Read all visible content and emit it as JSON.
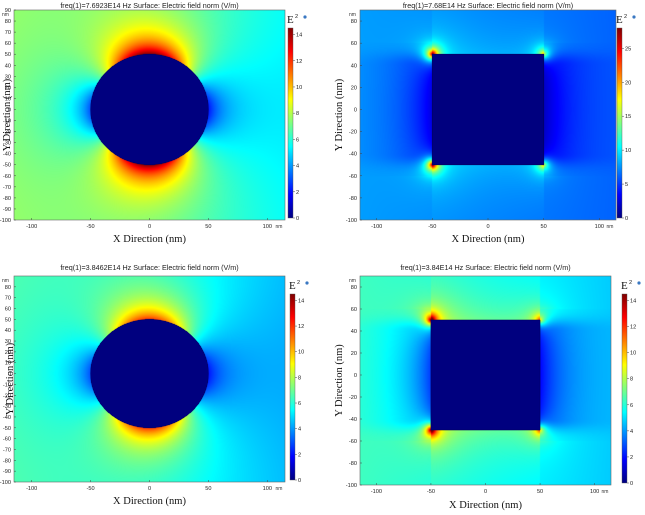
{
  "colors": {
    "background_field": "#00aaff",
    "particle": "#00007f",
    "colormap": [
      "#00007f",
      "#0000ff",
      "#007fff",
      "#00ffff",
      "#7fff7f",
      "#ffff00",
      "#ff7f00",
      "#ff0000",
      "#7f0000"
    ]
  },
  "chart_data": [
    {
      "type": "heatmap",
      "title": "freq(1)=7.6923E14 Hz   Surface: Electric field norm (V/m)",
      "xlabel": "X Direction (nm)",
      "ylabel": "Y Direction (nm)",
      "x_unit": "nm",
      "y_unit": "nm",
      "xlim": [
        -115,
        115
      ],
      "ylim": [
        -100,
        90
      ],
      "x_ticks": [
        -100,
        -50,
        0,
        50,
        100
      ],
      "y_ticks": [
        90,
        80,
        70,
        60,
        50,
        40,
        30,
        20,
        10,
        0,
        -10,
        -20,
        -30,
        -40,
        -50,
        -60,
        -70,
        -80,
        -90,
        -100
      ],
      "shape": "circle",
      "shape_radius": 50,
      "colorbar_label": "E",
      "colorbar_sup": "2",
      "colorbar_range": [
        0,
        14.5
      ],
      "colorbar_ticks": [
        0,
        2,
        4,
        6,
        8,
        10,
        12,
        14
      ],
      "field_model": {
        "background": 6.5,
        "hotspot_peak": 14.5,
        "shadow_min": 2.5
      }
    },
    {
      "type": "heatmap",
      "title": "freq(1)=7.68E14 Hz   Surface: Electric field norm (V/m)",
      "xlabel": "X Direction (nm)",
      "ylabel": "Y Direction (nm)",
      "x_unit": "nm",
      "y_unit": "nm",
      "xlim": [
        -115,
        115
      ],
      "ylim": [
        -100,
        90
      ],
      "x_ticks": [
        -100,
        -50,
        0,
        50,
        100
      ],
      "y_ticks": [
        80,
        60,
        40,
        20,
        0,
        -20,
        -40,
        -60,
        -80,
        -100
      ],
      "shape": "square",
      "shape_half_width": 50,
      "colorbar_label": "E",
      "colorbar_sup": "2",
      "colorbar_range": [
        0,
        28
      ],
      "colorbar_ticks": [
        0,
        5,
        10,
        15,
        20,
        25
      ],
      "field_model": {
        "background": 7,
        "hotspot_peak": 28,
        "shadow_min": 2
      }
    },
    {
      "type": "heatmap",
      "title": "freq(1)=3.8462E14 Hz   Surface: Electric field norm (V/m)",
      "xlabel": "X Direction (nm)",
      "ylabel": "Y Direction (nm)",
      "x_unit": "nm",
      "y_unit": "nm",
      "xlim": [
        -115,
        115
      ],
      "ylim": [
        -100,
        90
      ],
      "x_ticks": [
        -100,
        -50,
        0,
        50,
        100
      ],
      "y_ticks": [
        80,
        70,
        60,
        50,
        40,
        30,
        20,
        10,
        0,
        -10,
        -20,
        -30,
        -40,
        -50,
        -60,
        -70,
        -80,
        -90,
        -100
      ],
      "shape": "circle",
      "shape_radius": 50,
      "colorbar_label": "E",
      "colorbar_sup": "2",
      "colorbar_range": [
        0,
        14.5
      ],
      "colorbar_ticks": [
        0,
        2,
        4,
        6,
        8,
        10,
        12,
        14
      ],
      "field_model": {
        "background": 5.5,
        "hotspot_peak": 12,
        "shadow_min": 2.5
      }
    },
    {
      "type": "heatmap",
      "title": "freq(1)=3.84E14 Hz   Surface: Electric field norm (V/m)",
      "xlabel": "X Direction (nm)",
      "ylabel": "Y Direction (nm)",
      "x_unit": "nm",
      "y_unit": "nm",
      "xlim": [
        -115,
        115
      ],
      "ylim": [
        -100,
        90
      ],
      "x_ticks": [
        -100,
        -50,
        0,
        50,
        100
      ],
      "y_ticks": [
        80,
        60,
        40,
        20,
        0,
        -20,
        -40,
        -60,
        -80,
        -100
      ],
      "shape": "square",
      "shape_half_width": 50,
      "colorbar_label": "E",
      "colorbar_sup": "2",
      "colorbar_range": [
        0,
        14.5
      ],
      "colorbar_ticks": [
        0,
        2,
        4,
        6,
        8,
        10,
        12,
        14
      ],
      "field_model": {
        "background": 5.5,
        "hotspot_peak": 14.5,
        "shadow_min": 2
      }
    }
  ]
}
